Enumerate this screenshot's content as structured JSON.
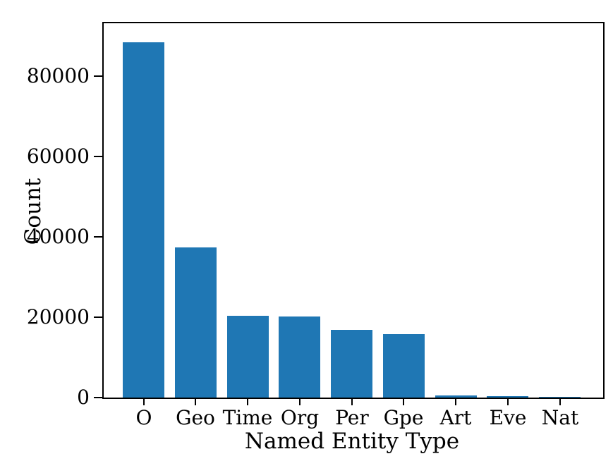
{
  "chart_data": {
    "type": "bar",
    "title": "",
    "xlabel": "Named Entity Type",
    "ylabel": "Count",
    "categories": [
      "O",
      "Geo",
      "Time",
      "Org",
      "Per",
      "Gpe",
      "Art",
      "Eve",
      "Nat"
    ],
    "values": [
      88500,
      37400,
      20300,
      20100,
      16900,
      15800,
      500,
      300,
      200
    ],
    "yticks": [
      0,
      20000,
      40000,
      60000,
      80000
    ],
    "ylim": [
      0,
      93100
    ],
    "bar_color": "#1f77b4",
    "axis_color": "#000000",
    "grid": false,
    "legend": null
  }
}
